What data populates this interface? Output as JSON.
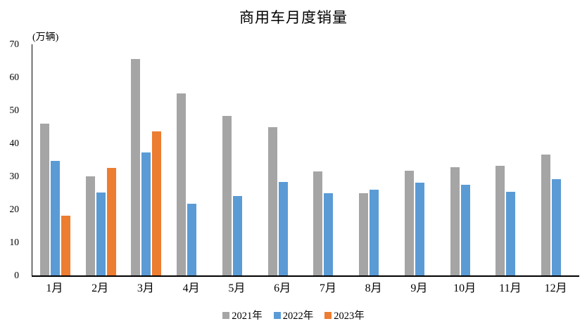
{
  "title": "商用车月度销量",
  "unit_label": "(万辆)",
  "colors": {
    "background": "#FFFFFF",
    "axis": "#000000",
    "text": "#000000",
    "series_2021": "#A5A5A5",
    "series_2022": "#5B9BD5",
    "series_2023": "#ED7D31"
  },
  "chart_data": {
    "type": "bar",
    "title": "商用车月度销量",
    "xlabel": "",
    "ylabel": "(万辆)",
    "categories": [
      "1月",
      "2月",
      "3月",
      "4月",
      "5月",
      "6月",
      "7月",
      "8月",
      "9月",
      "10月",
      "11月",
      "12月"
    ],
    "series": [
      {
        "name": "2021年",
        "color": "#A5A5A5",
        "values": [
          46.0,
          29.9,
          65.5,
          55.2,
          48.3,
          44.8,
          31.4,
          25.0,
          31.8,
          32.7,
          33.1,
          36.5
        ]
      },
      {
        "name": "2022年",
        "color": "#5B9BD5",
        "values": [
          34.7,
          25.2,
          37.2,
          21.7,
          24.0,
          28.2,
          24.8,
          25.9,
          28.0,
          27.4,
          25.4,
          29.2
        ]
      },
      {
        "name": "2023年",
        "color": "#ED7D31",
        "values": [
          18.1,
          32.5,
          43.6,
          null,
          null,
          null,
          null,
          null,
          null,
          null,
          null,
          null
        ]
      }
    ],
    "ylim": [
      0,
      70
    ],
    "yticks": [
      0,
      10,
      20,
      30,
      40,
      50,
      60,
      70
    ],
    "grid": false,
    "legend_position": "bottom"
  }
}
